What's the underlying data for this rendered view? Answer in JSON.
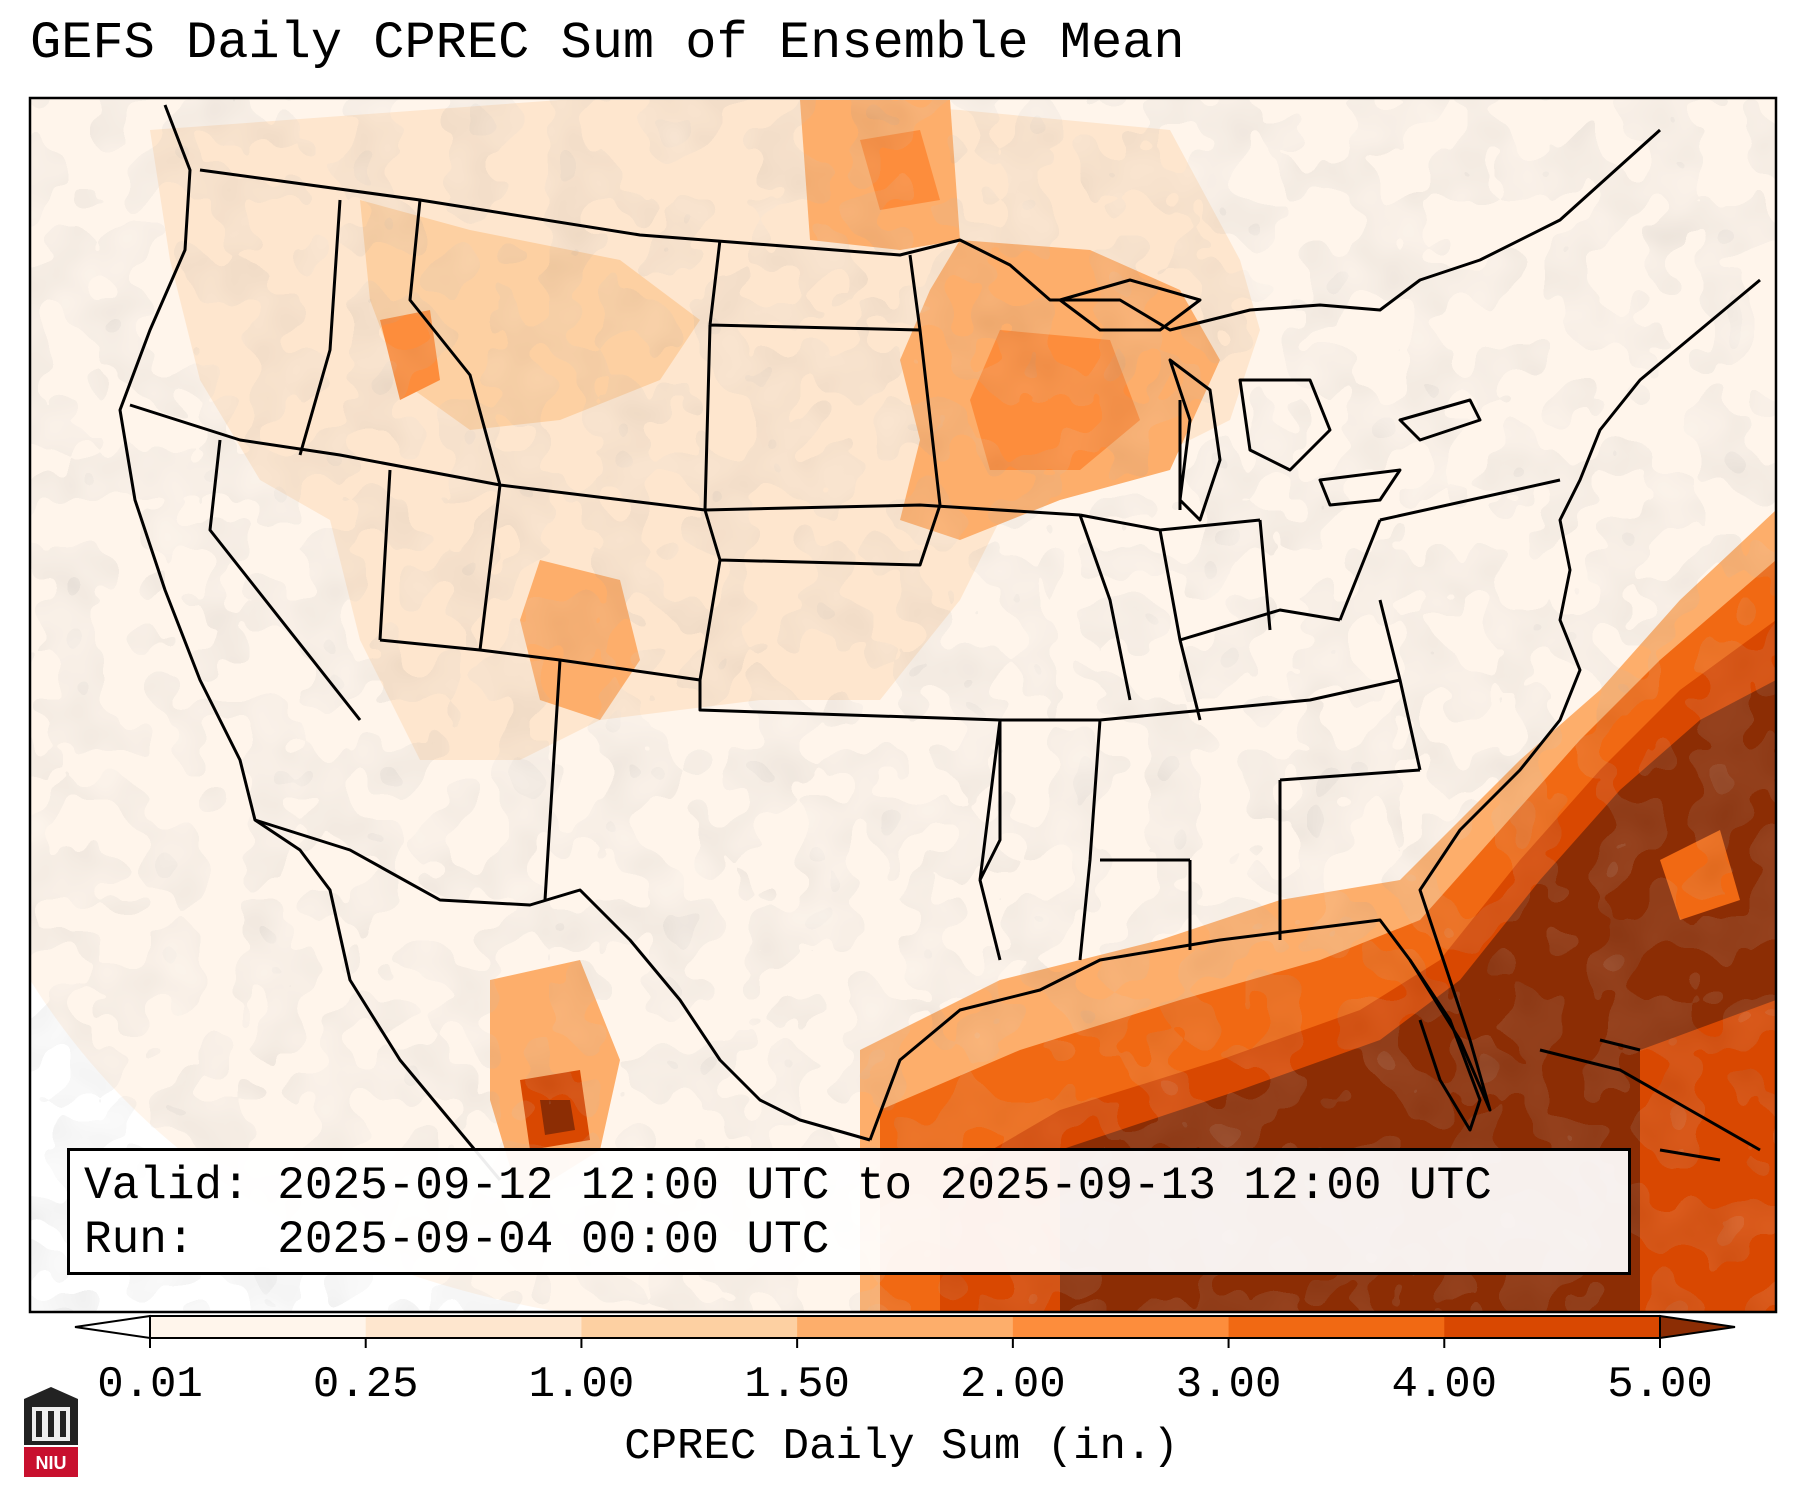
{
  "title": "GEFS Daily CPREC Sum of Ensemble Mean",
  "info": {
    "valid_label": "Valid:",
    "valid_value": "2025-09-12 12:00 UTC to 2025-09-13 12:00 UTC",
    "run_label": "Run:",
    "run_value": "2025-09-04 00:00 UTC"
  },
  "colorbar": {
    "title": "CPREC Daily Sum (in.)",
    "ticks": [
      "0.01",
      "0.25",
      "1.00",
      "1.50",
      "2.00",
      "3.00",
      "4.00",
      "5.00"
    ],
    "colors": [
      "#fff5eb",
      "#fee6ce",
      "#fdd0a2",
      "#fdae6b",
      "#fd8d3c",
      "#f16913",
      "#d94801",
      "#8c2d04"
    ],
    "under_color": "#ffffff",
    "over_color": "#8c2d04"
  },
  "logo": {
    "text": "NIU",
    "color": "#c8102e"
  },
  "map": {
    "region": "Continental United States",
    "gulf_coast_intensity": "high",
    "atlantic_offshore_intensity": "high"
  }
}
